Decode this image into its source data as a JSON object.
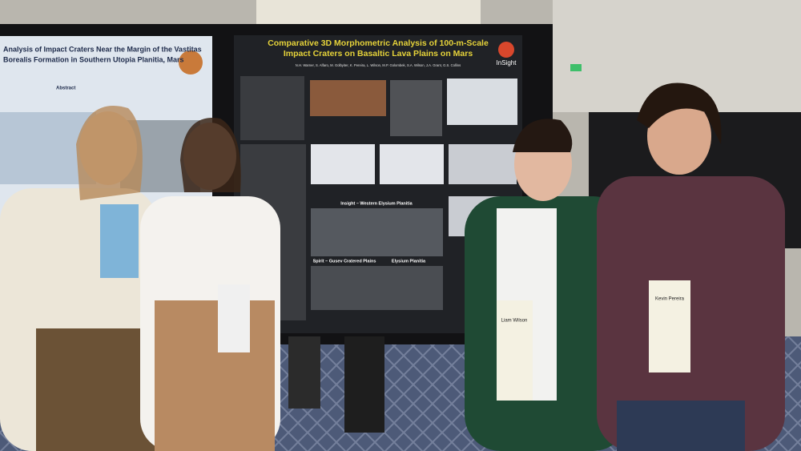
{
  "scene": {
    "left_poster": {
      "title_lines": [
        "Analysis of Impact Craters Near the Margin of the Vastitas",
        "Borealis Formation in Southern Utopia Planitia, Mars"
      ],
      "heading": "Abstract"
    },
    "main_poster": {
      "title_lines": [
        "Comparative 3D Morphometric Analysis of 100-m-Scale",
        "Impact Craters on Basaltic Lava Plains on Mars"
      ],
      "authors": "N.H. Warner, S. Alfaro, M. Golbyiter, K. Pereira, L. Wilson, M.P. Golombek, S.A. Wilson, J.A. Grant, G.S. Collins",
      "logo": "InSight",
      "panel_labels": [
        "Insight – Western Elysium Planitia",
        "Spirit – Gusev Cratered Plains",
        "Elysium Planitia"
      ]
    },
    "badges": [
      "Liam Wilson",
      "Kevin Pereira"
    ]
  }
}
